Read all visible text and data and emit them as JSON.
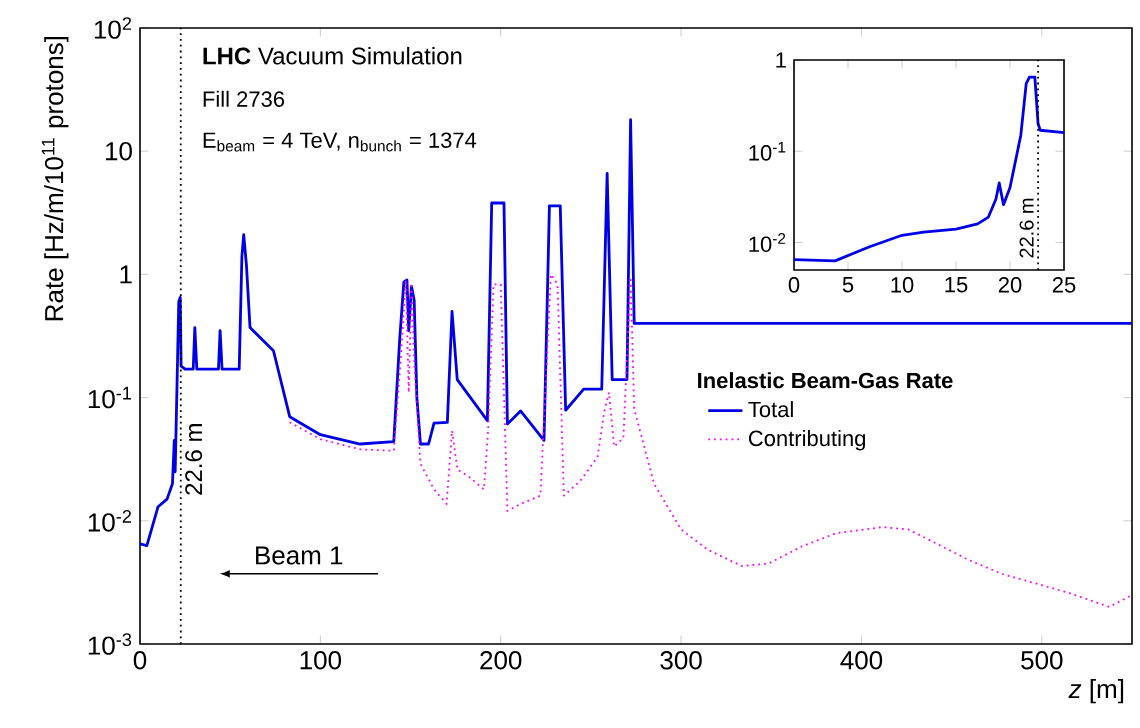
{
  "chart_data": [
    {
      "type": "line",
      "xlabel": "*z* [m]",
      "ylabel": "Rate [Hz/m/10$^{11}$ protons]",
      "legend_title": "Inelastic Beam-Gas Rate",
      "legend": "right",
      "log": "y",
      "marker": "none",
      "annotations": [
        "**LHC** Vacuum Simulation",
        "Fill 2736",
        "E$_{beam}$ = 4 TeV, n$_{bunch}$ = 1374",
        "Beam 1"
      ],
      "xlim": [
        0,
        550
      ],
      "ylim": [
        0.001,
        100
      ],
      "xticks": [
        0,
        100,
        200,
        300,
        400,
        500
      ],
      "yticks": [
        {
          "value": 0.001,
          "label": "10$^{-3}$"
        },
        {
          "value": 0.01,
          "label": "10$^{-2}$"
        },
        {
          "value": 0.1,
          "label": "10$^{-1}$"
        },
        1,
        10,
        {
          "value": 100,
          "label": "10$^{2}$"
        }
      ],
      "ref_lines": [
        {
          "axis": "x",
          "value": 22.6,
          "label": "22.6 m",
          "line_style": "dotted"
        }
      ],
      "series": [
        {
          "name": "Total",
          "color": "#0000e6",
          "line_style": "solid",
          "x": [
            0,
            3.8,
            10,
            15,
            18,
            19,
            19.5,
            21.5,
            22.3,
            22.8,
            25,
            29.5,
            30.4,
            31.5,
            43.5,
            44.4,
            45.5,
            55,
            56.5,
            57.5,
            59,
            61,
            74,
            83,
            100,
            122,
            140.7,
            144,
            146.3,
            148,
            149,
            150.5,
            152,
            153.5,
            155.5,
            160,
            163,
            170.4,
            173,
            175.9,
            192.6,
            195,
            201.8,
            203.7,
            211,
            224,
            227,
            233,
            236,
            246,
            256,
            259,
            261.8,
            270,
            272,
            274,
            550
          ],
          "values": [
            0.0065,
            0.0063,
            0.013,
            0.015,
            0.02,
            0.045,
            0.025,
            0.6,
            0.65,
            0.18,
            0.17,
            0.17,
            0.37,
            0.17,
            0.17,
            0.35,
            0.17,
            0.17,
            1.4,
            2.1,
            1.2,
            0.37,
            0.24,
            0.07,
            0.05,
            0.042,
            0.044,
            0.3,
            0.87,
            0.9,
            0.35,
            0.8,
            0.62,
            0.1,
            0.042,
            0.042,
            0.062,
            0.063,
            0.5,
            0.14,
            0.065,
            3.8,
            3.8,
            0.061,
            0.078,
            0.045,
            3.6,
            3.6,
            0.079,
            0.117,
            0.117,
            6.6,
            0.14,
            0.14,
            18,
            0.4,
            0.4
          ]
        },
        {
          "name": "Contributing",
          "color": "#ff00ff",
          "line_style": "dotted",
          "x": [
            83,
            100,
            122,
            140.7,
            144.4,
            147.4,
            149,
            150.5,
            152,
            155.5,
            163,
            170,
            173,
            176,
            182,
            190.7,
            193,
            196,
            200,
            203.7,
            211,
            222,
            227.8,
            231.5,
            235,
            244,
            253.7,
            257.4,
            260,
            262.9,
            268,
            272,
            274,
            285,
            300,
            315,
            333.7,
            348.5,
            367,
            385.5,
            411.5,
            426,
            441,
            459.6,
            478,
            496.7,
            515,
            537.4,
            550
          ],
          "values": [
            0.063,
            0.046,
            0.038,
            0.037,
            0.19,
            0.9,
            0.11,
            0.85,
            0.2,
            0.029,
            0.018,
            0.0137,
            0.054,
            0.026,
            0.023,
            0.018,
            0.054,
            0.83,
            0.83,
            0.012,
            0.0137,
            0.016,
            1.0,
            0.83,
            0.016,
            0.021,
            0.033,
            0.077,
            0.11,
            0.04,
            0.047,
            0.95,
            0.081,
            0.02,
            0.0085,
            0.0058,
            0.0043,
            0.0045,
            0.0062,
            0.0079,
            0.0089,
            0.0085,
            0.0066,
            0.0048,
            0.0037,
            0.0031,
            0.0026,
            0.002,
            0.0025
          ]
        }
      ]
    },
    {
      "type": "line",
      "log": "y",
      "marker": "none",
      "xlim": [
        0,
        25
      ],
      "ylim": [
        0.005,
        1
      ],
      "xticks": [
        0,
        5,
        10,
        15,
        20,
        25
      ],
      "yticks": [
        {
          "value": 0.01,
          "label": "10$^{-2}$"
        },
        {
          "value": 0.1,
          "label": "10$^{-1}$"
        },
        1
      ],
      "ref_lines": [
        {
          "axis": "x",
          "value": 22.6,
          "label": "22.6 m",
          "line_style": "dotted"
        }
      ],
      "series": [
        {
          "color": "#0000e6",
          "line_style": "solid",
          "x": [
            0,
            3.8,
            7,
            10,
            12,
            15,
            17,
            18,
            18.7,
            19,
            19.4,
            20,
            21,
            21.5,
            21.8,
            22.3,
            22.6,
            22.8,
            25
          ],
          "values": [
            0.0065,
            0.0063,
            0.009,
            0.012,
            0.013,
            0.014,
            0.016,
            0.019,
            0.03,
            0.045,
            0.026,
            0.04,
            0.15,
            0.55,
            0.65,
            0.65,
            0.2,
            0.17,
            0.16
          ]
        }
      ]
    }
  ]
}
